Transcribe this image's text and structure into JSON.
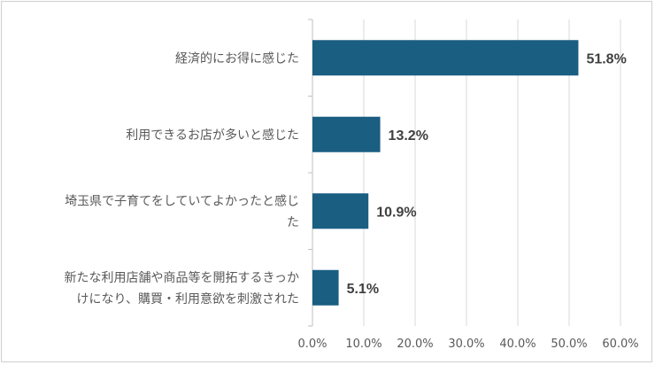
{
  "chart_data": {
    "type": "bar",
    "orientation": "horizontal",
    "categories": [
      [
        "経済的にお得に感じた"
      ],
      [
        "利用できるお店が多いと感じた"
      ],
      [
        "埼玉県で子育てをしていてよかったと感じ",
        "た"
      ],
      [
        "新たな利用店舗や商品等を開拓するきっか",
        "けになり、購買・利用意欲を刺激された"
      ]
    ],
    "values": [
      51.8,
      13.2,
      10.9,
      5.1
    ],
    "data_labels": [
      "51.8%",
      "13.2%",
      "10.9%",
      "5.1%"
    ],
    "xlim": [
      0,
      60
    ],
    "ticks": [
      0,
      10,
      20,
      30,
      40,
      50,
      60
    ],
    "tick_labels": [
      "0.0%",
      "10.0%",
      "20.0%",
      "30.0%",
      "40.0%",
      "50.0%",
      "60.0%"
    ],
    "grid": true,
    "bar_color": "#1a5e82",
    "grid_color": "#d9d9d9"
  }
}
